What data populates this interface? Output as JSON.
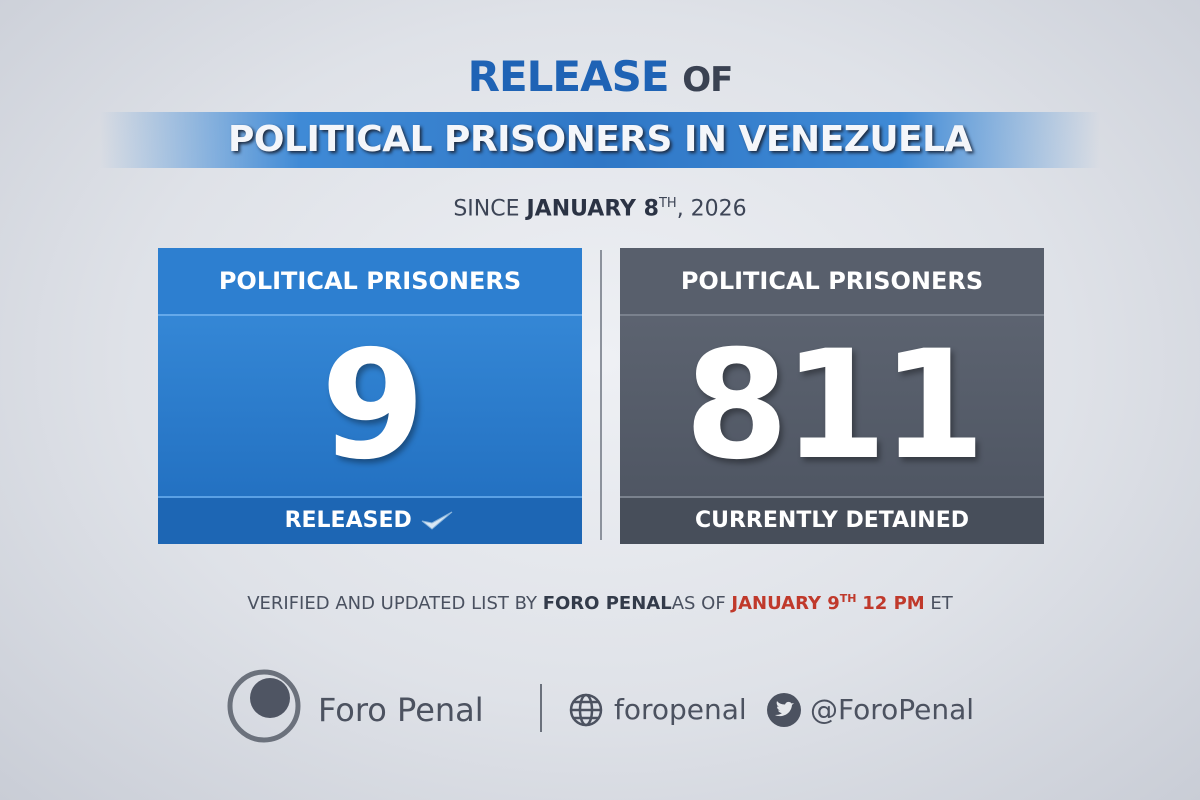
{
  "header": {
    "title_highlight": "RELEASE",
    "title_rest": "OF",
    "banner": "POLITICAL PRISONERS IN VENEZUELA"
  },
  "subtitle": {
    "prefix": "SINCE",
    "date": "JANUARY 8",
    "ordinal": "TH",
    "year": ", 2026"
  },
  "cards": [
    {
      "header": "POLITICAL PRISONERS",
      "number": 9,
      "footer": "RELEASED"
    },
    {
      "header": "POLITICAL PRISONERS",
      "number": 811,
      "footer": "CURRENTLY DETAINED"
    }
  ],
  "note": {
    "text": "VERIFIED AND UPDATED LIST BY",
    "source": "FORO PENAL",
    "as_of": "AS OF",
    "date": "JANUARY 9",
    "ordinal": "TH",
    "time": "12 PM",
    "zone": "ET"
  },
  "footer": {
    "brand": "Foro Penal",
    "website": "foropenal",
    "twitter": "@ForoPenal"
  }
}
